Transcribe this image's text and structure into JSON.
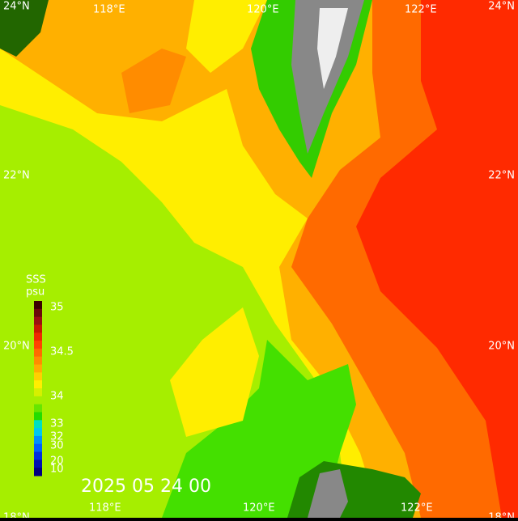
{
  "title": "2025 05 24 00",
  "legend": {
    "title": "SSS",
    "unit": "psu",
    "labels": [
      "35",
      "34.5",
      "34",
      "33",
      "32",
      "30",
      "20",
      "10"
    ],
    "colors": [
      "#3a0000",
      "#6a0a0a",
      "#9a1010",
      "#c81a00",
      "#ee2a00",
      "#ff4400",
      "#ff6a00",
      "#ff8c00",
      "#ffac00",
      "#ffd000",
      "#ffee00",
      "#d6f000",
      "#a6ee00",
      "#66e600",
      "#22dd00",
      "#00e0c0",
      "#00c8f0",
      "#0090ff",
      "#0060ff",
      "#0030e0",
      "#0010b0",
      "#000080"
    ]
  },
  "grid_labels": {
    "top": [
      "118°E",
      "120°E",
      "122°E"
    ],
    "bottom": [
      "118°E",
      "120°E",
      "122°E"
    ],
    "left": [
      "24°N",
      "22°N",
      "20°N",
      "18°N"
    ],
    "right": [
      "24°N",
      "22°N",
      "20°N",
      "18°N"
    ]
  }
}
